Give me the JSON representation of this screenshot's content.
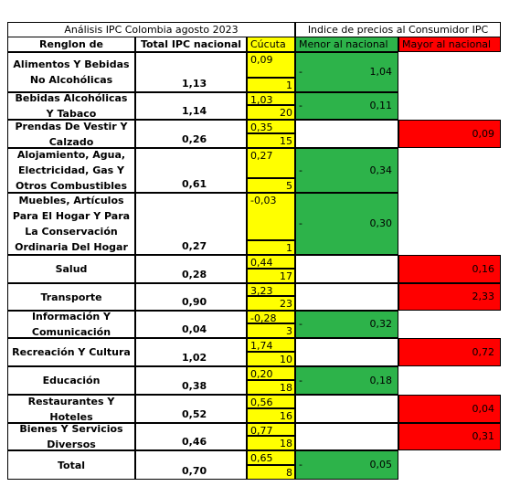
{
  "header": {
    "left_title": "Análisis IPC Colombia agosto 2023",
    "right_title": "Indice de precios al Consumidor IPC"
  },
  "columns": [
    "Renglon de",
    "Total IPC nacional",
    "Cúcuta",
    "Menor al nacional",
    "Mayor al nacional"
  ],
  "marker": "-",
  "rows": [
    {
      "name": "Alimentos Y Bebidas No Alcohólicas",
      "total": "1,13",
      "cucuta": "0,09",
      "rank": "1",
      "menor": "1,04",
      "mayor": null
    },
    {
      "name": "Bebidas Alcohólicas Y Tabaco",
      "total": "1,14",
      "cucuta": "1,03",
      "rank": "20",
      "menor": "0,11",
      "mayor": null
    },
    {
      "name": "Prendas De Vestir Y Calzado",
      "total": "0,26",
      "cucuta": "0,35",
      "rank": "15",
      "menor": null,
      "mayor": "0,09"
    },
    {
      "name": "Alojamiento, Agua, Electricidad, Gas Y Otros Combustibles",
      "total": "0,61",
      "cucuta": "0,27",
      "rank": "5",
      "menor": "0,34",
      "mayor": null
    },
    {
      "name": "Muebles, Artículos Para El Hogar Y Para La Conservación Ordinaria Del Hogar",
      "total": "0,27",
      "cucuta": "-0,03",
      "rank": "1",
      "menor": "0,30",
      "mayor": null
    },
    {
      "name": "Salud",
      "total": "0,28",
      "cucuta": "0,44",
      "rank": "17",
      "menor": null,
      "mayor": "0,16"
    },
    {
      "name": "Transporte",
      "total": "0,90",
      "cucuta": "3,23",
      "rank": "23",
      "menor": null,
      "mayor": "2,33"
    },
    {
      "name": "Información Y Comunicación",
      "total": "0,04",
      "cucuta": "-0,28",
      "rank": "3",
      "menor": "0,32",
      "mayor": null
    },
    {
      "name": "Recreación Y Cultura",
      "total": "1,02",
      "cucuta": "1,74",
      "rank": "10",
      "menor": null,
      "mayor": "0,72"
    },
    {
      "name": "Educación",
      "total": "0,38",
      "cucuta": "0,20",
      "rank": "18",
      "menor": "0,18",
      "mayor": null
    },
    {
      "name": "Restaurantes Y Hoteles",
      "total": "0,52",
      "cucuta": "0,56",
      "rank": "16",
      "menor": null,
      "mayor": "0,04"
    },
    {
      "name": "Bienes Y Servicios Diversos",
      "total": "0,46",
      "cucuta": "0,77",
      "rank": "18",
      "menor": null,
      "mayor": "0,31"
    },
    {
      "name": "Total",
      "total": "0,70",
      "cucuta": "0,65",
      "rank": "8",
      "menor": "0,05",
      "mayor": null
    }
  ]
}
